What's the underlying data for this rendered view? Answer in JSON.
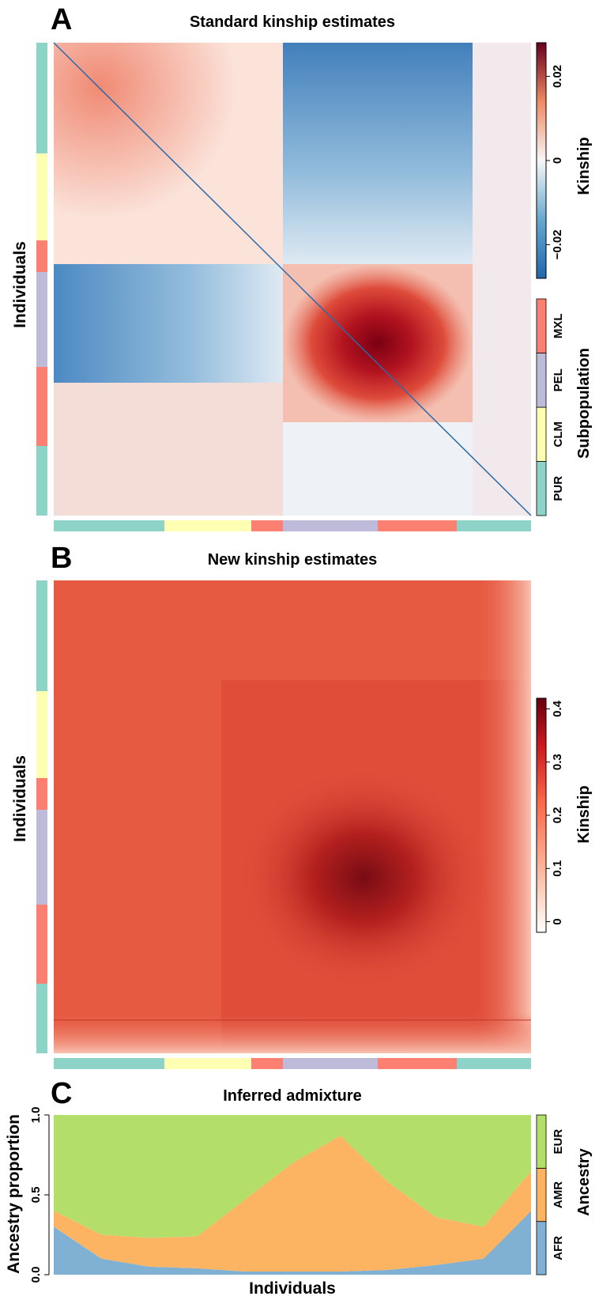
{
  "colors": {
    "PUR": "#8dd3c7",
    "CLM": "#ffffb3",
    "PEL": "#bebada",
    "MXL": "#fb8072",
    "AFR": "#80b1d3",
    "AMR": "#fdb462",
    "EUR": "#b3de69"
  },
  "chart_data": [
    {
      "panel": "A",
      "type": "heatmap",
      "title": "Standard kinship estimates",
      "ylabel": "Individuals",
      "colorbar": {
        "title": "Kinship",
        "range": [
          -0.028,
          0.028
        ],
        "ticks": [
          {
            "value": -0.02,
            "label": "−0.02"
          },
          {
            "value": 0,
            "label": "0"
          },
          {
            "value": 0.02,
            "label": "0.02"
          }
        ],
        "palette": "blue-white-red"
      },
      "subpopulation_legend": {
        "title": "Subpopulation",
        "items": [
          "PUR",
          "CLM",
          "PEL",
          "MXL"
        ]
      }
    },
    {
      "panel": "B",
      "type": "heatmap",
      "title": "New kinship estimates",
      "ylabel": "Individuals",
      "colorbar": {
        "title": "Kinship",
        "range": [
          -0.02,
          0.42
        ],
        "ticks": [
          {
            "value": 0,
            "label": "0"
          },
          {
            "value": 0.1,
            "label": "0.1"
          },
          {
            "value": 0.2,
            "label": "0.2"
          },
          {
            "value": 0.3,
            "label": "0.3"
          },
          {
            "value": 0.4,
            "label": "0.4"
          }
        ],
        "palette": "white-red"
      }
    },
    {
      "panel": "C",
      "type": "area",
      "title": "Inferred admixture",
      "xlabel": "Individuals",
      "ylabel": "Ancestry proportion",
      "ylim": [
        0,
        1
      ],
      "yticks": [
        {
          "value": 0,
          "label": "0.0"
        },
        {
          "value": 0.5,
          "label": "0.5"
        },
        {
          "value": 1,
          "label": "1.0"
        }
      ],
      "legend": {
        "title": "Ancestry",
        "items": [
          "AFR",
          "AMR",
          "EUR"
        ]
      },
      "series": [
        {
          "name": "AFR",
          "x": [
            0,
            0.1,
            0.2,
            0.3,
            0.4,
            0.5,
            0.6,
            0.7,
            0.8,
            0.9,
            1.0
          ],
          "values": [
            0.3,
            0.1,
            0.05,
            0.04,
            0.02,
            0.02,
            0.02,
            0.03,
            0.06,
            0.1,
            0.4
          ]
        },
        {
          "name": "AMR",
          "x": [
            0,
            0.1,
            0.2,
            0.3,
            0.4,
            0.5,
            0.6,
            0.7,
            0.8,
            0.9,
            1.0
          ],
          "values": [
            0.1,
            0.15,
            0.18,
            0.2,
            0.45,
            0.68,
            0.85,
            0.55,
            0.3,
            0.2,
            0.25
          ]
        },
        {
          "name": "EUR",
          "x": [
            0,
            0.1,
            0.2,
            0.3,
            0.4,
            0.5,
            0.6,
            0.7,
            0.8,
            0.9,
            1.0
          ],
          "values": [
            0.6,
            0.75,
            0.77,
            0.76,
            0.53,
            0.3,
            0.13,
            0.42,
            0.64,
            0.7,
            0.35
          ]
        }
      ]
    }
  ]
}
